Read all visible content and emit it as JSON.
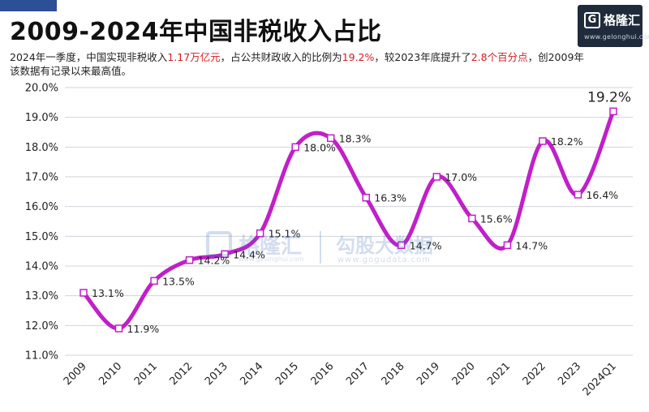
{
  "header": {
    "title": "2009-2024年中国非税收入占比",
    "subtitle_parts": [
      {
        "text": "2024年一季度，中国实现非税收入",
        "hl": false
      },
      {
        "text": "1.17万亿元",
        "hl": true
      },
      {
        "text": "，占公共财政收入的比例为",
        "hl": false
      },
      {
        "text": "19.2%",
        "hl": true
      },
      {
        "text": "，较2023年底提升了",
        "hl": false
      },
      {
        "text": "2.8个百分点",
        "hl": true
      },
      {
        "text": "，创2009年该数据有记录以来最高值。",
        "hl": false
      }
    ]
  },
  "logo": {
    "mark": "G",
    "name": "格隆汇",
    "url": "www.gelonghui.com"
  },
  "watermark": {
    "name1": "格隆汇",
    "url1": "www.gelonghui.com",
    "name2": "勾股大数据",
    "url2": "www.gogudata.com"
  },
  "colors": {
    "line": "#c11fc9",
    "grid": "#cfd3da",
    "marker_fill": "#ffffff",
    "marker_stroke": "#c11fc9",
    "highlight": "#d62020"
  },
  "chart_data": {
    "type": "line",
    "title": "2009-2024年中国非税收入占比",
    "xlabel": "",
    "ylabel": "",
    "categories": [
      "2009",
      "2010",
      "2011",
      "2012",
      "2013",
      "2014",
      "2015",
      "2016",
      "2017",
      "2018",
      "2019",
      "2020",
      "2021",
      "2022",
      "2023",
      "2024Q1"
    ],
    "series": [
      {
        "values": [
          13.1,
          11.9,
          13.5,
          14.2,
          14.4,
          15.1,
          18.0,
          18.3,
          16.3,
          14.7,
          17.0,
          15.6,
          14.7,
          18.2,
          16.4,
          19.2
        ]
      }
    ],
    "data_labels": [
      "13.1%",
      "11.9%",
      "13.5%",
      "14.2%",
      "14.4%",
      "15.1%",
      "18.0%",
      "18.3%",
      "16.3%",
      "14.7%",
      "17.0%",
      "15.6%",
      "14.7%",
      "18.2%",
      "16.4%",
      "19.2%"
    ],
    "yticks": [
      "11.0%",
      "12.0%",
      "13.0%",
      "14.0%",
      "15.0%",
      "16.0%",
      "17.0%",
      "18.0%",
      "19.0%",
      "20.0%"
    ],
    "ylim": [
      11,
      20
    ],
    "grid": true,
    "legend": "none"
  }
}
